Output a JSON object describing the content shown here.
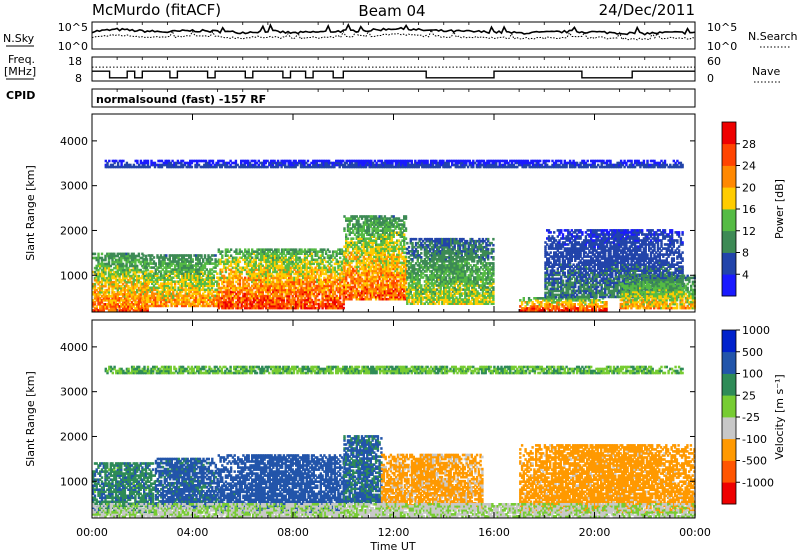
{
  "header": {
    "station": "McMurdo (fitACF)",
    "beam": "Beam 04",
    "date": "24/Dec/2011",
    "mode": "normalsound (fast) -157 RF"
  },
  "side_labels": {
    "nsky": "N.Sky",
    "freq_line1": "Freq.",
    "freq_line2": "[MHz]",
    "cpid": "CPID",
    "nsearch": "N.Search",
    "nave": "Nave"
  },
  "colors": {
    "power": [
      "#1a1aff",
      "#2244aa",
      "#3d8a55",
      "#55bb44",
      "#ffcc00",
      "#ff8800",
      "#ff4400",
      "#ee0000"
    ],
    "velocity": [
      "#ee0000",
      "#ff5500",
      "#ff9900",
      "#c8c8c8",
      "#77cc33",
      "#2e8b57",
      "#2255aa",
      "#0022cc"
    ]
  },
  "chart_data": [
    {
      "type": "line",
      "name": "noise-panel",
      "y_left_ticks": [
        "10^5",
        "10^0"
      ],
      "y_right_ticks": [
        "10^5",
        "10^0"
      ],
      "series": [
        {
          "label": "N.Sky",
          "style": "solid"
        },
        {
          "label": "N.Search",
          "style": "dotted"
        }
      ],
      "n_sky_log10": [
        3.3,
        3.7,
        3.4,
        3.2,
        3.5,
        3.3,
        3.1,
        3.4,
        3.0,
        3.2,
        3.4,
        3.5,
        3.9,
        3.6,
        3.4,
        3.3,
        3.2,
        3.0,
        3.1,
        3.3,
        3.2,
        3.0,
        2.9,
        3.1,
        3.0
      ],
      "n_search_log10": [
        2.2,
        2.6,
        2.3,
        2.1,
        2.4,
        2.2,
        2.0,
        2.3,
        1.9,
        2.1,
        2.3,
        2.4,
        2.8,
        2.5,
        2.3,
        2.2,
        2.1,
        1.9,
        2.0,
        2.2,
        2.1,
        1.9,
        1.8,
        2.0,
        1.9
      ]
    },
    {
      "type": "line",
      "name": "frequency-panel",
      "y_left_ticks": [
        "18",
        "8"
      ],
      "y_right_ticks": [
        "60",
        "0"
      ],
      "freq_mhz_segments": [
        [
          0.0,
          0.7,
          12
        ],
        [
          0.7,
          1.4,
          9
        ],
        [
          1.4,
          1.7,
          12
        ],
        [
          1.7,
          2.0,
          9
        ],
        [
          2.0,
          3.1,
          12
        ],
        [
          3.1,
          3.4,
          9
        ],
        [
          3.4,
          4.6,
          12
        ],
        [
          4.6,
          4.9,
          9
        ],
        [
          4.9,
          6.1,
          12
        ],
        [
          6.1,
          6.4,
          9
        ],
        [
          6.4,
          7.6,
          12
        ],
        [
          7.6,
          7.9,
          9
        ],
        [
          7.9,
          8.5,
          12
        ],
        [
          8.5,
          8.8,
          9
        ],
        [
          8.8,
          9.6,
          12
        ],
        [
          9.6,
          10.0,
          9
        ],
        [
          10.0,
          13.3,
          12
        ],
        [
          13.3,
          16.0,
          9
        ],
        [
          16.0,
          19.5,
          12
        ],
        [
          19.5,
          21.5,
          9
        ],
        [
          21.5,
          24.0,
          12
        ]
      ],
      "nave_level": 35
    },
    {
      "type": "heatmap",
      "name": "power",
      "x_range_hours": [
        0,
        24
      ],
      "x_ticks": [
        "00:00",
        "04:00",
        "08:00",
        "12:00",
        "16:00",
        "20:00",
        "00:00"
      ],
      "xlabel": "Time UT",
      "ylabel": "Slant Range [km]",
      "ylim_km": [
        180,
        4600
      ],
      "y_ticks": [
        1000,
        2000,
        3000,
        4000
      ],
      "colorbar_label": "Power [dB]",
      "colorbar_ticks": [
        4,
        8,
        12,
        16,
        20,
        24,
        28
      ],
      "echo_regions": [
        {
          "t0": 0.0,
          "t1": 2.2,
          "r0": 200,
          "r1": 1500,
          "peak": 26
        },
        {
          "t0": 2.0,
          "t1": 5.0,
          "r0": 300,
          "r1": 1450,
          "peak": 24
        },
        {
          "t0": 5.0,
          "t1": 10.0,
          "r0": 250,
          "r1": 1600,
          "peak": 30
        },
        {
          "t0": 10.0,
          "t1": 12.5,
          "r0": 450,
          "r1": 2300,
          "peak": 27
        },
        {
          "t0": 12.5,
          "t1": 16.0,
          "r0": 350,
          "r1": 1800,
          "peak": 18
        },
        {
          "t0": 17.0,
          "t1": 20.5,
          "r0": 200,
          "r1": 480,
          "peak": 30
        },
        {
          "t0": 18.0,
          "t1": 23.5,
          "r0": 500,
          "r1": 2000,
          "peak": 10
        },
        {
          "t0": 21.0,
          "t1": 24.0,
          "r0": 250,
          "r1": 1000,
          "peak": 22
        },
        {
          "t0": 0.5,
          "t1": 23.5,
          "r0": 3400,
          "r1": 3550,
          "peak": 6
        }
      ]
    },
    {
      "type": "heatmap",
      "name": "velocity",
      "x_range_hours": [
        0,
        24
      ],
      "x_ticks": [
        "00:00",
        "04:00",
        "08:00",
        "12:00",
        "16:00",
        "20:00",
        "00:00"
      ],
      "xlabel": "Time UT",
      "ylabel": "Slant Range [km]",
      "ylim_km": [
        180,
        4600
      ],
      "y_ticks": [
        1000,
        2000,
        3000,
        4000
      ],
      "colorbar_label": "Velocity [m s⁻¹]",
      "colorbar_ticks": [
        -1000,
        -500,
        -100,
        -25,
        25,
        100,
        500,
        1000
      ],
      "echo_regions": [
        {
          "t0": 0.0,
          "t1": 2.5,
          "r0": 300,
          "r1": 1400,
          "v": 80
        },
        {
          "t0": 2.5,
          "t1": 5.0,
          "r0": 400,
          "r1": 1500,
          "v": 150
        },
        {
          "t0": 5.0,
          "t1": 10.0,
          "r0": 300,
          "r1": 1600,
          "v": 250
        },
        {
          "t0": 10.0,
          "t1": 11.5,
          "r0": 500,
          "r1": 2000,
          "v": 120
        },
        {
          "t0": 11.5,
          "t1": 15.5,
          "r0": 400,
          "r1": 1600,
          "v": -150
        },
        {
          "t0": 17.0,
          "t1": 24.0,
          "r0": 300,
          "r1": 1800,
          "v": -200
        },
        {
          "t0": 0.0,
          "t1": 24.0,
          "r0": 200,
          "r1": 500,
          "v": -30
        },
        {
          "t0": 0.5,
          "t1": 23.5,
          "r0": 3400,
          "r1": 3550,
          "v": 20
        }
      ]
    }
  ]
}
